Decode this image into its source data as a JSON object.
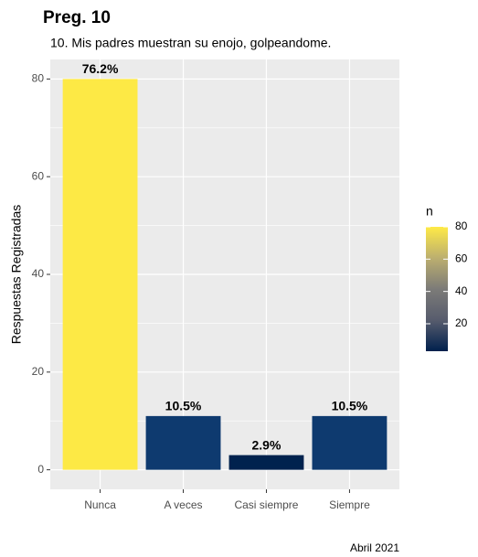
{
  "chart_data": {
    "type": "bar",
    "title": "Preg. 10",
    "subtitle": "10. Mis padres muestran su enojo, golpeandome.",
    "y_label": "Respuestas Registradas",
    "caption": "Abril 2021",
    "categories": [
      "Nunca",
      "A veces",
      "Casi siempre",
      "Siempre"
    ],
    "values": [
      80,
      11,
      3,
      11
    ],
    "value_labels": [
      "76.2%",
      "10.5%",
      "2.9%",
      "10.5%"
    ],
    "colors": [
      "#FDE945",
      "#0E3A6F",
      "#00224E",
      "#0E3A6F"
    ],
    "ylim": [
      -4,
      84
    ],
    "yticks": [
      0,
      20,
      40,
      60,
      80
    ],
    "grid": true,
    "legend": {
      "title": "n",
      "limits": [
        3,
        80
      ],
      "ticks": [
        20,
        40,
        60,
        80
      ],
      "colors": [
        "#00204D",
        "#575C6D",
        "#7C7B78",
        "#BCAF6F",
        "#FFEA46"
      ]
    }
  }
}
